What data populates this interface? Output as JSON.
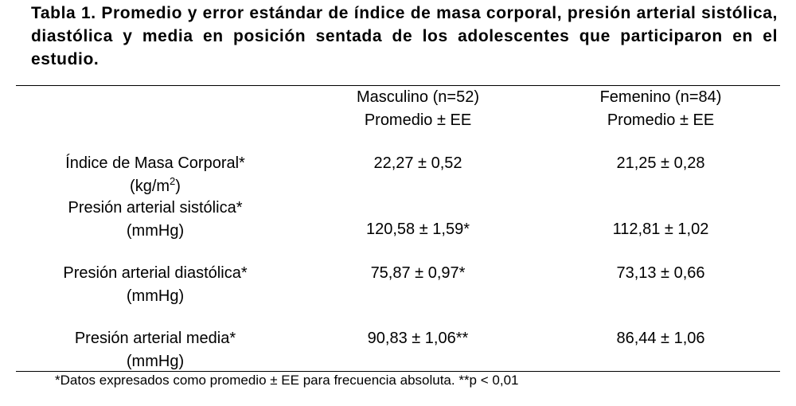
{
  "title": "Tabla 1. Promedio y error estándar de índice de masa corporal, presión arterial sistólica, diastólica y media en posición sentada de los adolescentes que participaron en el estudio.",
  "columns": {
    "masculino": {
      "group": "Masculino (n=52)",
      "stat": "Promedio ± EE"
    },
    "femenino": {
      "group": "Femenino (n=84)",
      "stat": "Promedio ± EE"
    }
  },
  "rows": [
    {
      "label": "Índice de Masa Corporal*",
      "unit_prefix": "(kg/m",
      "unit_sup": "2",
      "unit_suffix": ")",
      "masculino": "22,27 ± 0,52",
      "femenino": "21,25 ± 0,28"
    },
    {
      "label": "Presión arterial sistólica*",
      "unit": "(mmHg)",
      "masculino": "120,58 ± 1,59*",
      "femenino": "112,81 ± 1,02"
    },
    {
      "label": "Presión arterial diastólica*",
      "unit": "(mmHg)",
      "masculino": "75,87 ± 0,97*",
      "femenino": "73,13 ± 0,66"
    },
    {
      "label": "Presión arterial media*",
      "unit": "(mmHg)",
      "masculino": "90,83 ± 1,06**",
      "femenino": "86,44 ± 1,06"
    }
  ],
  "footnote": "*Datos expresados como promedio ± EE para frecuencia absoluta. **p < 0,01"
}
